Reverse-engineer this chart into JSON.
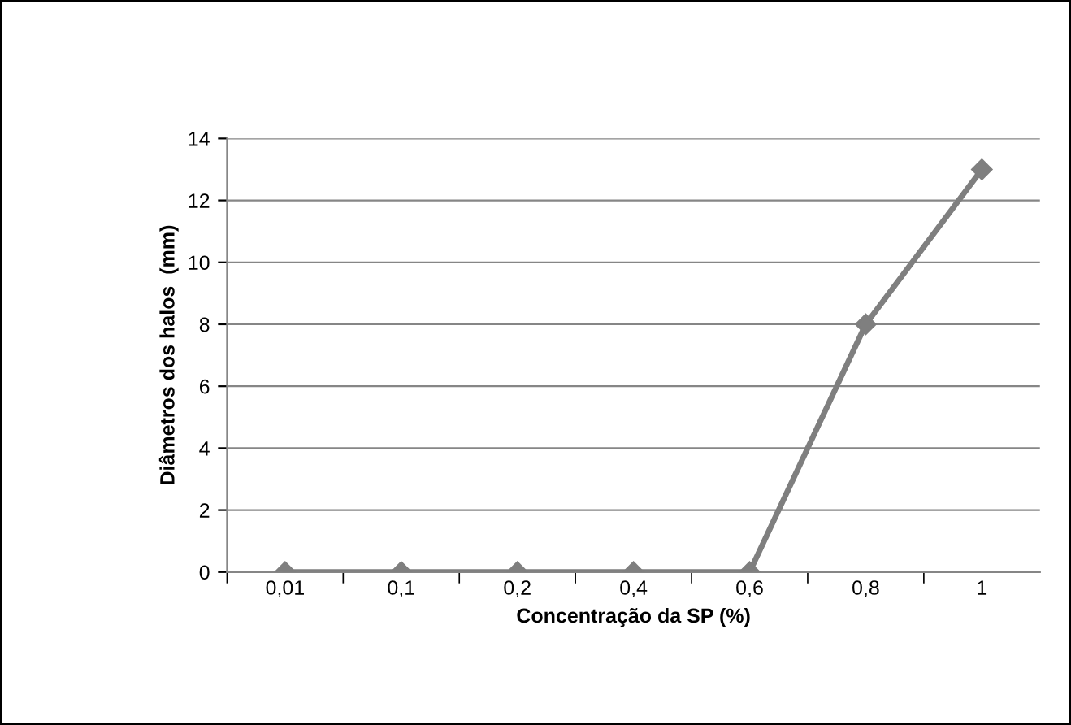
{
  "chart_data": {
    "type": "line",
    "xlabel": "Concentração da SP (%)",
    "ylabel": "Diâmetros dos halos  (mm)",
    "categories": [
      "0,01",
      "0,1",
      "0,2",
      "0,4",
      "0,6",
      "0,8",
      "1"
    ],
    "series": [
      {
        "color": "#7f7f7f",
        "values": [
          0,
          0,
          0,
          0,
          0,
          8,
          13
        ]
      }
    ],
    "ylim": [
      0,
      14
    ],
    "yticks": [
      0,
      2,
      4,
      6,
      8,
      10,
      12,
      14
    ],
    "grid": "y",
    "marker": "diamond",
    "line_style": "solid"
  }
}
